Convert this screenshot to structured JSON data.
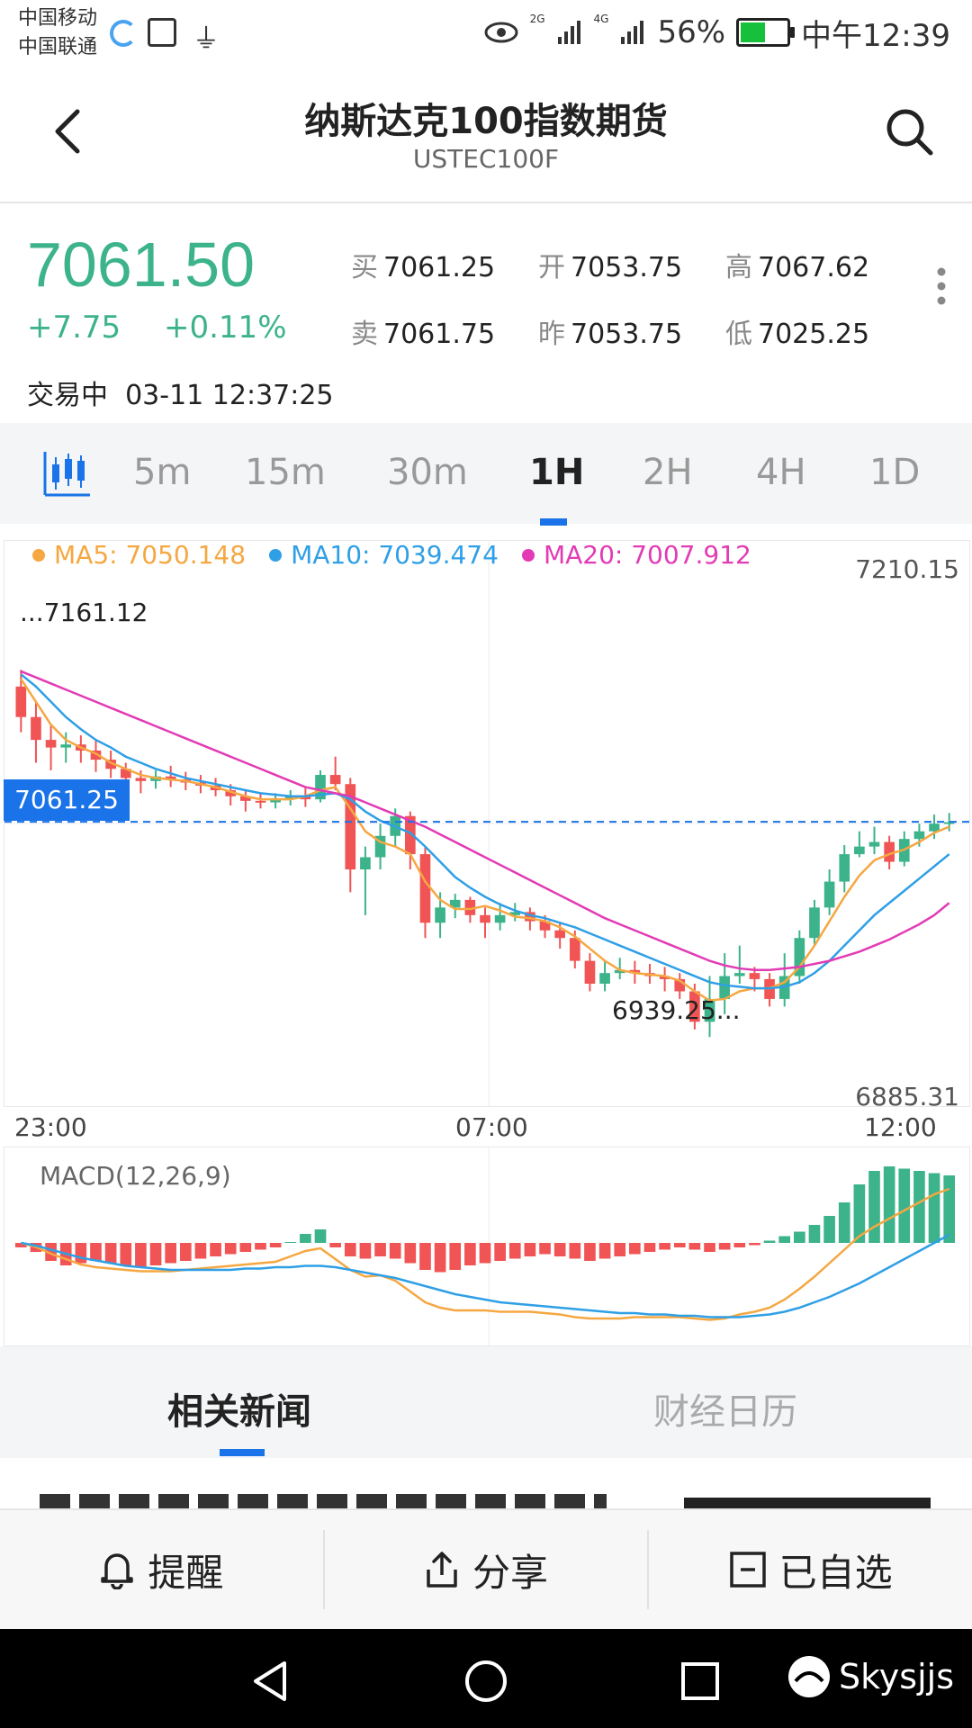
{
  "status_bar": {
    "carrier1": "中国移动",
    "carrier2": "中国联通",
    "net1": "2G",
    "net2": "4G",
    "battery": "56%",
    "time": "中午12:39",
    "battery_level": 0.56
  },
  "header": {
    "title": "纳斯达克100指数期货",
    "subtitle": "USTEC100F"
  },
  "quote": {
    "price": "7061.50",
    "change": "+7.75",
    "change_pct": "+0.11%",
    "bid_label": "买",
    "bid": "7061.25",
    "ask_label": "卖",
    "ask": "7061.75",
    "open_label": "开",
    "open": "7053.75",
    "prev_label": "昨",
    "prev": "7053.75",
    "high_label": "高",
    "high": "7067.62",
    "low_label": "低",
    "low": "7025.25",
    "status": "交易中",
    "datetime": "03-11 12:37:25"
  },
  "tabs": [
    "5m",
    "15m",
    "30m",
    "1H",
    "2H",
    "4H",
    "1D"
  ],
  "active_tab": "1H",
  "chart": {
    "ma5_label": "MA5: 7050.148",
    "ma10_label": "MA10: 7039.474",
    "ma20_label": "MA20: 7007.912",
    "max_label": "7210.15",
    "min_label": "6885.31",
    "high_marker": "...7161.12",
    "low_marker": "6939.25...",
    "current_price_tag": "7061.25",
    "time_labels": [
      "23:00",
      "07:00",
      "12:00"
    ],
    "macd_label": "MACD(12,26,9)",
    "colors": {
      "up": "#3cb38a",
      "down": "#f05454",
      "ma5": "#f5a742",
      "ma10": "#2f9fe6",
      "ma20": "#e23bb5",
      "accent": "#1a73e8"
    }
  },
  "chart_data": [
    {
      "type": "candlestick",
      "ylim": [
        6885.31,
        7210.15
      ],
      "x_ticks": [
        "23:00",
        "07:00",
        "12:00"
      ],
      "candles": [
        [
          7150,
          7130,
          7161,
          7120
        ],
        [
          7130,
          7115,
          7140,
          7100
        ],
        [
          7115,
          7110,
          7125,
          7095
        ],
        [
          7110,
          7112,
          7120,
          7100
        ],
        [
          7112,
          7108,
          7118,
          7100
        ],
        [
          7108,
          7102,
          7115,
          7094
        ],
        [
          7102,
          7096,
          7108,
          7090
        ],
        [
          7096,
          7090,
          7100,
          7085
        ],
        [
          7090,
          7088,
          7095,
          7080
        ],
        [
          7088,
          7091,
          7095,
          7083
        ],
        [
          7091,
          7089,
          7098,
          7084
        ],
        [
          7089,
          7087,
          7094,
          7082
        ],
        [
          7087,
          7085,
          7092,
          7080
        ],
        [
          7085,
          7082,
          7090,
          7078
        ],
        [
          7082,
          7078,
          7086,
          7072
        ],
        [
          7078,
          7075,
          7082,
          7068
        ],
        [
          7075,
          7074,
          7080,
          7070
        ],
        [
          7074,
          7076,
          7080,
          7070
        ],
        [
          7076,
          7078,
          7082,
          7072
        ],
        [
          7078,
          7076,
          7084,
          7071
        ],
        [
          7076,
          7092,
          7095,
          7074
        ],
        [
          7092,
          7086,
          7104,
          7082
        ],
        [
          7086,
          7030,
          7090,
          7015
        ],
        [
          7030,
          7038,
          7045,
          7000
        ],
        [
          7038,
          7052,
          7060,
          7030
        ],
        [
          7052,
          7065,
          7070,
          7045
        ],
        [
          7065,
          7040,
          7068,
          7030
        ],
        [
          7040,
          6995,
          7045,
          6985
        ],
        [
          6995,
          7005,
          7015,
          6985
        ],
        [
          7005,
          7010,
          7014,
          6998
        ],
        [
          7010,
          7000,
          7012,
          6995
        ],
        [
          7000,
          6995,
          7005,
          6985
        ],
        [
          6995,
          7000,
          7008,
          6990
        ],
        [
          7000,
          7002,
          7008,
          6996
        ],
        [
          7002,
          6996,
          7005,
          6990
        ],
        [
          6996,
          6990,
          7000,
          6985
        ],
        [
          6990,
          6985,
          6995,
          6978
        ],
        [
          6985,
          6970,
          6990,
          6965
        ],
        [
          6970,
          6955,
          6975,
          6950
        ],
        [
          6955,
          6962,
          6970,
          6950
        ],
        [
          6962,
          6964,
          6972,
          6958
        ],
        [
          6964,
          6962,
          6970,
          6955
        ],
        [
          6962,
          6960,
          6968,
          6955
        ],
        [
          6960,
          6958,
          6966,
          6950
        ],
        [
          6958,
          6950,
          6962,
          6945
        ],
        [
          6950,
          6930,
          6955,
          6925
        ],
        [
          6930,
          6945,
          6960,
          6920
        ],
        [
          6945,
          6960,
          6975,
          6935
        ],
        [
          6960,
          6962,
          6980,
          6955
        ],
        [
          6962,
          6958,
          6966,
          6950
        ],
        [
          6958,
          6945,
          6962,
          6940
        ],
        [
          6945,
          6960,
          6975,
          6940
        ],
        [
          6960,
          6985,
          6990,
          6955
        ],
        [
          6985,
          7005,
          7010,
          6980
        ],
        [
          7005,
          7022,
          7030,
          7000
        ],
        [
          7022,
          7040,
          7046,
          7015
        ],
        [
          7040,
          7045,
          7055,
          7038
        ],
        [
          7045,
          7048,
          7058,
          7040
        ],
        [
          7048,
          7035,
          7052,
          7030
        ],
        [
          7035,
          7050,
          7055,
          7032
        ],
        [
          7050,
          7055,
          7060,
          7045
        ],
        [
          7055,
          7060,
          7066,
          7050
        ],
        [
          7060,
          7061,
          7067,
          7055
        ]
      ],
      "series": [
        {
          "name": "MA5",
          "values": [
            7155,
            7140,
            7125,
            7115,
            7110,
            7106,
            7100,
            7096,
            7092,
            7090,
            7089,
            7088,
            7086,
            7084,
            7081,
            7078,
            7076,
            7076,
            7076,
            7078,
            7082,
            7084,
            7070,
            7055,
            7048,
            7045,
            7040,
            7022,
            7010,
            7004,
            7004,
            7006,
            7003,
            6999,
            6998,
            6996,
            6992,
            6986,
            6978,
            6970,
            6964,
            6962,
            6961,
            6960,
            6957,
            6950,
            6944,
            6945,
            6950,
            6952,
            6952,
            6956,
            6966,
            6980,
            6996,
            7012,
            7026,
            7036,
            7040,
            7043,
            7048,
            7054,
            7058
          ]
        },
        {
          "name": "MA10",
          "values": [
            7158,
            7150,
            7140,
            7130,
            7122,
            7115,
            7110,
            7104,
            7100,
            7096,
            7093,
            7090,
            7088,
            7086,
            7084,
            7082,
            7080,
            7079,
            7078,
            7078,
            7079,
            7080,
            7076,
            7068,
            7062,
            7058,
            7054,
            7045,
            7035,
            7025,
            7018,
            7012,
            7007,
            7003,
            7000,
            6998,
            6995,
            6992,
            6988,
            6984,
            6980,
            6976,
            6972,
            6968,
            6964,
            6960,
            6956,
            6954,
            6953,
            6952,
            6952,
            6953,
            6956,
            6962,
            6970,
            6980,
            6990,
            7000,
            7008,
            7016,
            7024,
            7032,
            7040
          ]
        },
        {
          "name": "MA20",
          "values": [
            7160,
            7156,
            7152,
            7148,
            7144,
            7140,
            7136,
            7132,
            7128,
            7124,
            7120,
            7116,
            7112,
            7108,
            7104,
            7100,
            7096,
            7092,
            7088,
            7084,
            7082,
            7080,
            7078,
            7074,
            7070,
            7066,
            7062,
            7058,
            7053,
            7048,
            7043,
            7038,
            7033,
            7028,
            7023,
            7018,
            7013,
            7008,
            7003,
            6998,
            6994,
            6990,
            6986,
            6982,
            6978,
            6974,
            6970,
            6967,
            6965,
            6964,
            6964,
            6965,
            6966,
            6968,
            6970,
            6973,
            6976,
            6980,
            6984,
            6989,
            6994,
            7000,
            7008
          ]
        }
      ]
    },
    {
      "type": "bar",
      "title": "MACD(12,26,9)",
      "histogram": [
        -2,
        -4,
        -8,
        -10,
        -9,
        -8,
        -9,
        -10,
        -11,
        -10,
        -9,
        -8,
        -7,
        -6,
        -5,
        -4,
        -3,
        -2,
        0,
        4,
        6,
        -2,
        -6,
        -7,
        -6,
        -7,
        -9,
        -12,
        -13,
        -12,
        -10,
        -9,
        -8,
        -7,
        -6,
        -5,
        -6,
        -7,
        -8,
        -7,
        -6,
        -5,
        -4,
        -3,
        -2,
        -3,
        -4,
        -3,
        -2,
        -1,
        1,
        3,
        5,
        8,
        12,
        18,
        26,
        32,
        34,
        33,
        32,
        31,
        30
      ],
      "series": [
        {
          "name": "DIF",
          "values": [
            0,
            -3,
            -8,
            -12,
            -16,
            -18,
            -19,
            -20,
            -21,
            -21,
            -21,
            -20,
            -19,
            -18,
            -17,
            -16,
            -15,
            -14,
            -10,
            -6,
            -4,
            -12,
            -20,
            -25,
            -24,
            -28,
            -36,
            -44,
            -48,
            -50,
            -50,
            -50,
            -51,
            -51,
            -51,
            -52,
            -53,
            -55,
            -56,
            -56,
            -56,
            -55,
            -55,
            -55,
            -55,
            -56,
            -57,
            -56,
            -53,
            -51,
            -48,
            -42,
            -34,
            -25,
            -15,
            -5,
            5,
            12,
            18,
            24,
            30,
            36,
            40
          ]
        },
        {
          "name": "DEA",
          "values": [
            0,
            -2,
            -5,
            -8,
            -11,
            -13,
            -15,
            -17,
            -18,
            -19,
            -20,
            -20,
            -20,
            -20,
            -20,
            -19,
            -19,
            -18,
            -18,
            -17,
            -17,
            -18,
            -20,
            -22,
            -24,
            -26,
            -29,
            -32,
            -35,
            -38,
            -40,
            -42,
            -44,
            -45,
            -46,
            -47,
            -48,
            -49,
            -50,
            -51,
            -52,
            -52,
            -53,
            -53,
            -54,
            -54,
            -55,
            -55,
            -55,
            -54,
            -53,
            -51,
            -48,
            -44,
            -40,
            -35,
            -30,
            -24,
            -18,
            -12,
            -6,
            0,
            6
          ]
        }
      ]
    }
  ],
  "news_tabs": [
    "相关新闻",
    "财经日历"
  ],
  "actions": [
    "提醒",
    "分享",
    "已自选"
  ],
  "watermark": "Skysjjs"
}
